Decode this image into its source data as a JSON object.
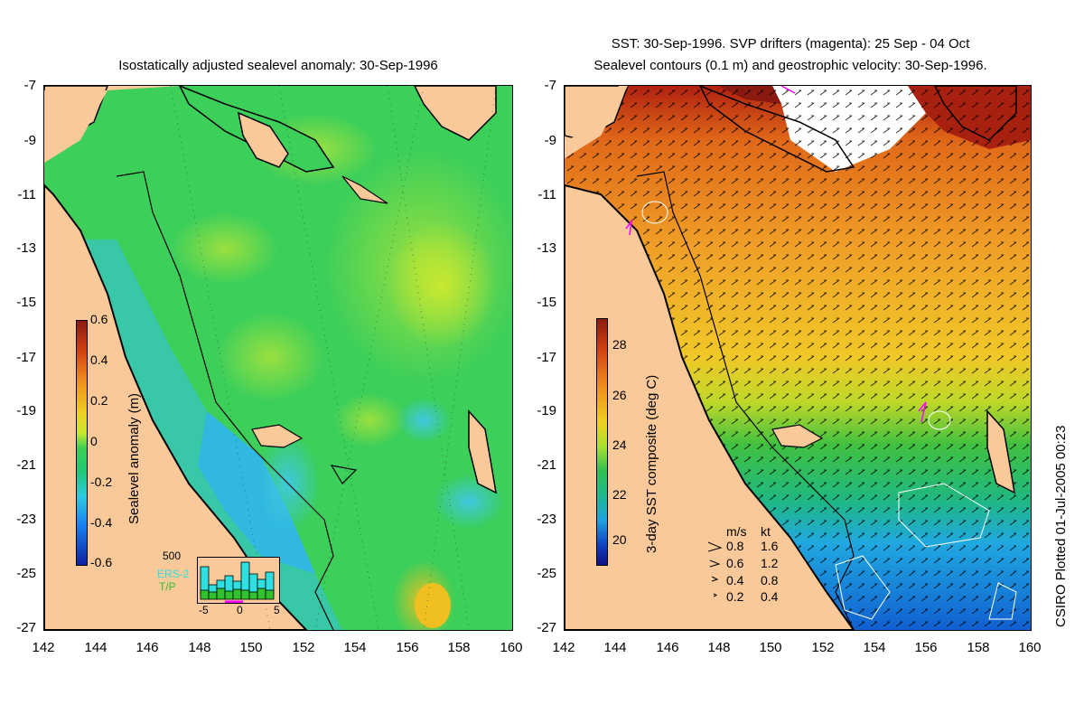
{
  "left_panel": {
    "title": "Isostatically adjusted sealevel anomaly: 30-Sep-1996",
    "colorbar": {
      "label": "Sealevel anomaly (m)",
      "ticks": [
        "0.6",
        "0.4",
        "0.2",
        "0",
        "-0.2",
        "-0.4",
        "-0.6"
      ]
    },
    "inset": {
      "ymax_label": "500",
      "series_labels": [
        "ERS-2",
        "T/P"
      ],
      "series_colors": [
        "#30e0e0",
        "#30c030"
      ],
      "x_ticks": [
        "-5",
        "0",
        "5"
      ]
    }
  },
  "right_panel": {
    "title_line1": "SST: 30-Sep-1996. SVP drifters (magenta): 25 Sep - 04 Oct",
    "title_line2": "Sealevel contours (0.1 m) and geostrophic velocity: 30-Sep-1996.",
    "colorbar": {
      "label": "3-day SST composite (deg C)",
      "ticks": [
        "28",
        "26",
        "24",
        "22",
        "20"
      ]
    },
    "velocity_legend": {
      "header_ms": "m/s",
      "header_kt": "kt",
      "rows": [
        {
          "ms": "0.8",
          "kt": "1.6"
        },
        {
          "ms": "0.6",
          "kt": "1.2"
        },
        {
          "ms": "0.4",
          "kt": "0.8"
        },
        {
          "ms": "0.2",
          "kt": "0.4"
        }
      ]
    }
  },
  "axes": {
    "y_ticks": [
      "-7",
      "-9",
      "-11",
      "-13",
      "-15",
      "-17",
      "-19",
      "-21",
      "-23",
      "-25",
      "-27"
    ],
    "x_ticks": [
      "142",
      "144",
      "146",
      "148",
      "150",
      "152",
      "154",
      "156",
      "158",
      "160"
    ]
  },
  "credit": "CSIRO Plotted 01-Jul-2005 00:23",
  "colors": {
    "land": "#f9c99a",
    "coast": "#000000",
    "drifters": "#ff00ff"
  }
}
